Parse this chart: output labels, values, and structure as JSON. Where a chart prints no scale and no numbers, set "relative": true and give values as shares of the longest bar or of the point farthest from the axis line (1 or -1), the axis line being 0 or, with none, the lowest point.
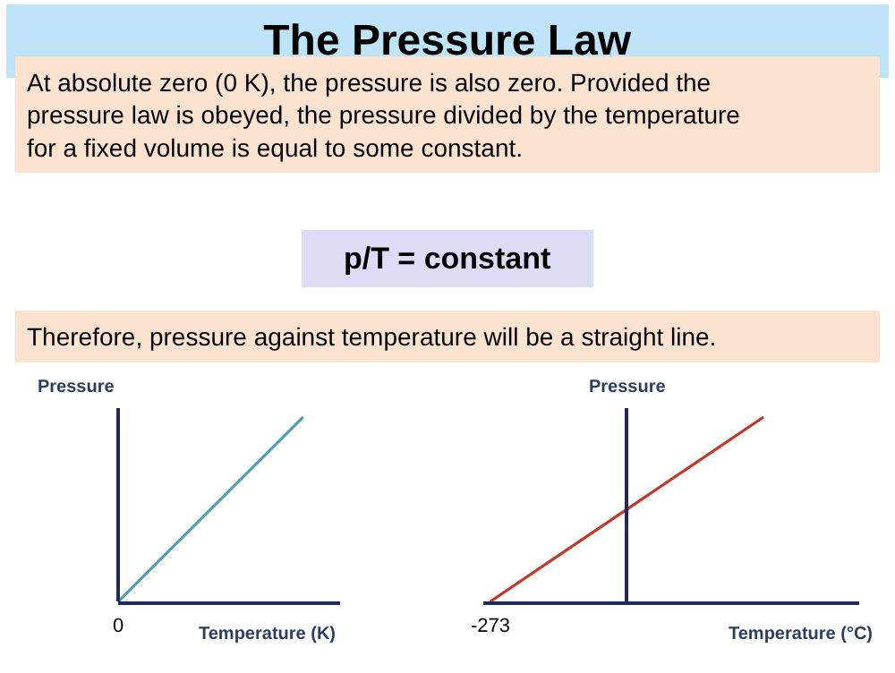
{
  "chart_data": [
    {
      "type": "line",
      "title": "The Pressure Law",
      "annotations": [
        "At absolute zero (0 K), the pressure is also zero. Provided the pressure law is obeyed, the pressure divided by the temperature for a fixed volume is equal to some constant.",
        "p/T = constant",
        "Therefore, pressure against temperature will be a straight line.",
        {
          "text": "0",
          "y": 0
        }
      ],
      "xlabel": "Temperature (K)",
      "ylabel": "Pressure",
      "relative": true,
      "categories": [
        null,
        null
      ],
      "series": [
        {
          "color": "#4aa3a8",
          "values": [
            0,
            1
          ]
        }
      ],
      "marker": "none",
      "line_style": "solid"
    },
    {
      "type": "line",
      "xlabel": "Temperature (°C)",
      "ylabel": "Pressure",
      "relative": true,
      "annotations": [
        {
          "text": "-273",
          "y": 0
        }
      ],
      "categories": [
        null,
        null,
        null
      ],
      "series": [
        {
          "color": "#c0392b",
          "values": [
            0,
            0.5,
            1
          ]
        }
      ],
      "marker": "none",
      "line_style": "solid"
    }
  ]
}
